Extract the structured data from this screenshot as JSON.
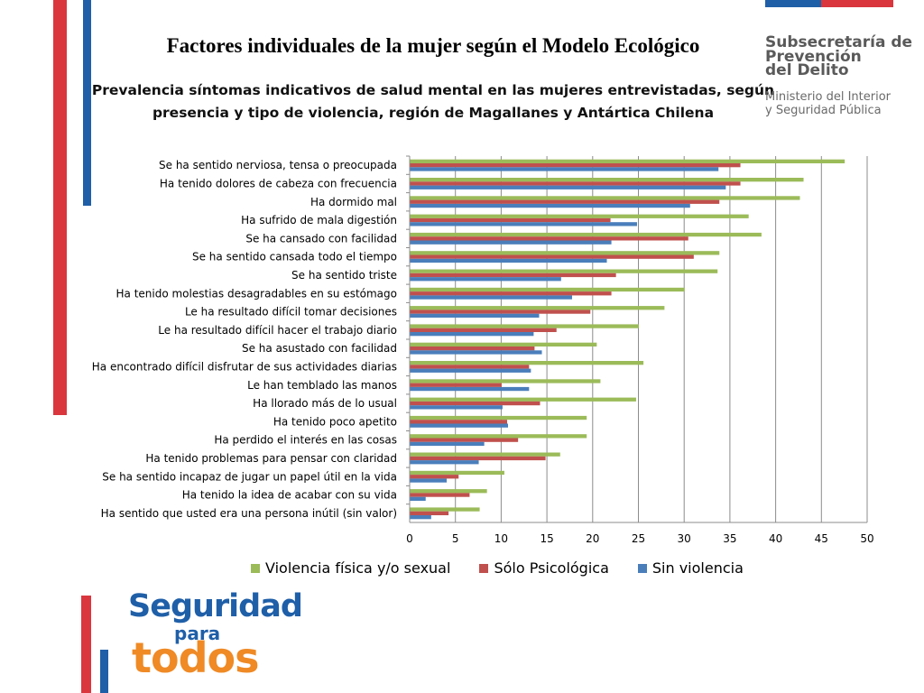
{
  "header": {
    "main_title": "Factores individuales de la mujer según el Modelo Ecológico"
  },
  "logo_top": {
    "line1": "Subsecretaría de",
    "line2": "Prevención",
    "line3": "del Delito",
    "line4": "Ministerio del Interior",
    "line5": "y Seguridad Pública"
  },
  "logo_bottom": {
    "line1": "Seguridad",
    "line2": "para",
    "line3": "todos"
  },
  "colors": {
    "blue": "#4a7ebb",
    "red": "#c0504d",
    "green": "#9bbb59",
    "stripe_red": "#d9363e",
    "stripe_blue": "#1f5fa8"
  },
  "chart_data": {
    "type": "bar",
    "orientation": "horizontal",
    "title_line1": "Prevalencia síntomas indicativos de salud mental en las mujeres entrevistadas, según",
    "title_line2": "presencia y tipo de violencia, región de Magallanes y Antártica Chilena",
    "xlim": [
      0,
      50
    ],
    "xticks": [
      "0",
      "5",
      "10",
      "15",
      "20",
      "25",
      "30",
      "35",
      "40",
      "45",
      "50"
    ],
    "grid": true,
    "legend_position": "bottom",
    "categories": [
      "Se ha sentido nerviosa, tensa o preocupada",
      "Ha tenido dolores de cabeza con frecuencia",
      "Ha dormido mal",
      "Ha sufrido de mala digestión",
      "Se ha cansado con facilidad",
      "Se ha sentido cansada todo el tiempo",
      "Se ha sentido triste",
      "Ha tenido molestias desagradables en su estómago",
      "Le ha resultado difícil tomar decisiones",
      "Le ha resultado difícil hacer el trabajo diario",
      "Se ha asustado con facilidad",
      "Ha encontrado difícil disfrutar de sus actividades diarias",
      "Le han temblado las manos",
      "Ha llorado más de lo usual",
      "Ha tenido poco apetito",
      "Ha perdido el interés en las cosas",
      "Ha tenido problemas para pensar con claridad",
      "Se ha sentido incapaz de jugar un papel útil en la vida",
      "Ha tenido la idea de acabar con su vida",
      "Ha sentido que usted era una persona inútil (sin valor)"
    ],
    "series": [
      {
        "name": "Violencia física y/o sexual",
        "values": [
          47.5,
          43,
          42.6,
          37,
          38.4,
          33.8,
          33.6,
          30,
          27.8,
          25,
          20.4,
          25.5,
          20.8,
          24.7,
          19.3,
          19.3,
          16.4,
          10.3,
          8.4,
          7.6
        ]
      },
      {
        "name": "Sólo Psicológica",
        "values": [
          36.1,
          36.1,
          33.8,
          21.9,
          30.4,
          31,
          22.5,
          22,
          19.7,
          16,
          13.6,
          13,
          10,
          14.2,
          10.6,
          11.8,
          14.8,
          5.3,
          6.5,
          4.2
        ]
      },
      {
        "name": "Sin violencia",
        "values": [
          33.7,
          34.5,
          30.6,
          24.8,
          22,
          21.5,
          16.5,
          17.7,
          14.1,
          13.5,
          14.4,
          13.2,
          13,
          10.1,
          10.7,
          8.1,
          7.5,
          4,
          1.7,
          2.3
        ]
      }
    ]
  }
}
